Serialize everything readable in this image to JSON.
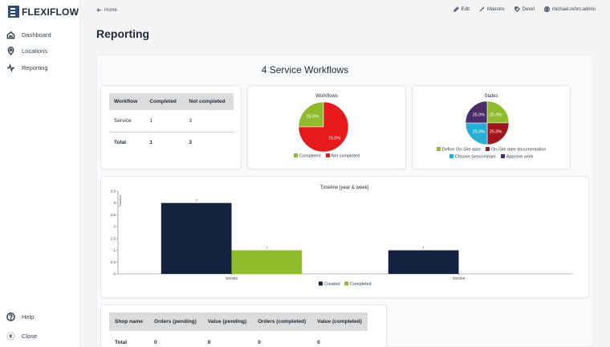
{
  "app": {
    "logo_text": "FLEXIFLOW"
  },
  "sidebar": {
    "items": [
      {
        "label": "Dashboard",
        "icon": "dashboard-icon"
      },
      {
        "label": "Locations",
        "icon": "location-pin-icon"
      },
      {
        "label": "Reporting",
        "icon": "activity-icon"
      }
    ],
    "help_label": "Help",
    "close_label": "Close"
  },
  "topbar": {
    "home_label": "Home",
    "edit_label": "Edit",
    "maestro_label": "Maestro",
    "devel_label": "Devel",
    "user_label": "michael.rehm.admin"
  },
  "page": {
    "title": "Reporting"
  },
  "report": {
    "title": "4 Service Workflows",
    "workflow_table": {
      "headers": [
        "Workflow",
        "Completed",
        "Not completed"
      ],
      "rows": [
        [
          "Service",
          "1",
          "3"
        ],
        [
          "Total",
          "1",
          "3"
        ]
      ]
    },
    "workflows_pie": {
      "title": "Workflows",
      "slices": [
        {
          "name": "Completed",
          "value": 25.0,
          "label": "25.0%",
          "color": "#8fbc2b"
        },
        {
          "name": "Not completed",
          "value": 75.0,
          "label": "75.0%",
          "color": "#e8191b"
        }
      ]
    },
    "states_pie": {
      "title": "States",
      "slices": [
        {
          "name": "Define On-Site date",
          "value": 25.0,
          "label": "25.0%",
          "color": "#8fbc2b"
        },
        {
          "name": "On-Site date documentation",
          "value": 25.0,
          "label": "25.0%",
          "color": "#a0141b"
        },
        {
          "name": "Choose Serviceteam",
          "value": 25.0,
          "label": "25.0%",
          "color": "#27aed6"
        },
        {
          "name": "Approve work",
          "value": 25.0,
          "label": "25.0%",
          "color": "#4b2c6a"
        }
      ]
    },
    "shop_table": {
      "headers": [
        "Shop name",
        "Orders (pending)",
        "Value (pending)",
        "Orders (completed)",
        "Value (completed)"
      ],
      "rows": [
        [
          "Total",
          "0",
          "0",
          "0",
          "0"
        ]
      ]
    }
  },
  "chart_data": {
    "type": "bar",
    "title": "Timeline [year & week]",
    "ylabel": "Number",
    "xlabel": "",
    "categories": [
      "202346",
      "202409"
    ],
    "ylim": [
      0,
      3.5
    ],
    "yticks": [
      0,
      0.5,
      1,
      1.5,
      2,
      2.5,
      3,
      3.5
    ],
    "grid": false,
    "legend": "bottom",
    "series": [
      {
        "name": "Created",
        "color": "#13233f",
        "values": [
          3,
          1
        ]
      },
      {
        "name": "Completed",
        "color": "#8fbc2b",
        "values": [
          1,
          0
        ]
      }
    ]
  }
}
